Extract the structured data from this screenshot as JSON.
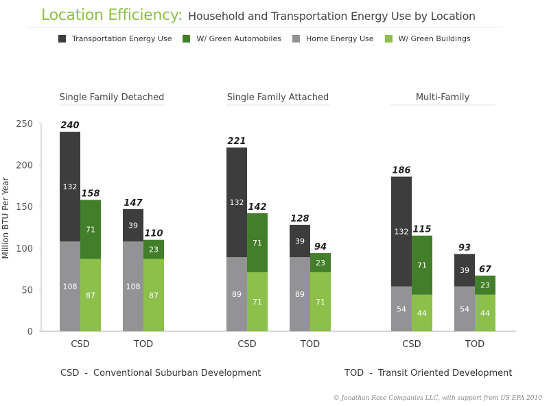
{
  "title": {
    "main": "Location Efficiency:",
    "sub": "Household and Transportation Energy Use by Location"
  },
  "legend": [
    {
      "label": "Transportation Energy Use",
      "color": "#3d3d3d"
    },
    {
      "label": "W/ Green Automobiles",
      "color": "#437f2a"
    },
    {
      "label": "Home Energy Use",
      "color": "#939396"
    },
    {
      "label": "W/ Green Buildings",
      "color": "#8cc04b"
    }
  ],
  "footnotes": {
    "csd_abbr": "CSD",
    "csd_dash": "-",
    "csd_text": "Conventional Suburban Development",
    "tod_abbr": "TOD",
    "tod_dash": "-",
    "tod_text": "Transit Oriented Development"
  },
  "credit": "© Jonathan Rose Companies LLC, with support from US EPA 2010",
  "chart_data": {
    "type": "bar",
    "stacked": true,
    "title": "Location Efficiency: Household and Transportation Energy Use by Location",
    "ylabel": "Million BTU Per Year",
    "xlabel": "",
    "ylim": [
      0,
      250
    ],
    "yticks": [
      0,
      50,
      100,
      150,
      200,
      250
    ],
    "grid": false,
    "legend_position": "top",
    "colors": {
      "transport": "#3d3d3d",
      "green_auto": "#437f2a",
      "home": "#939396",
      "green_bldg": "#8cc04b"
    },
    "groups": [
      {
        "name": "Single Family Detached",
        "categories": [
          {
            "label": "CSD",
            "standard": {
              "home": 108,
              "transport": 132,
              "total": 240
            },
            "green": {
              "home": 87,
              "transport": 71,
              "total": 158
            }
          },
          {
            "label": "TOD",
            "standard": {
              "home": 108,
              "transport": 39,
              "total": 147
            },
            "green": {
              "home": 87,
              "transport": 23,
              "total": 110
            }
          }
        ]
      },
      {
        "name": "Single Family Attached",
        "categories": [
          {
            "label": "CSD",
            "standard": {
              "home": 89,
              "transport": 132,
              "total": 221
            },
            "green": {
              "home": 71,
              "transport": 71,
              "total": 142
            }
          },
          {
            "label": "TOD",
            "standard": {
              "home": 89,
              "transport": 39,
              "total": 128
            },
            "green": {
              "home": 71,
              "transport": 23,
              "total": 94
            }
          }
        ]
      },
      {
        "name": "Multi-Family",
        "categories": [
          {
            "label": "CSD",
            "standard": {
              "home": 54,
              "transport": 132,
              "total": 186
            },
            "green": {
              "home": 44,
              "transport": 71,
              "total": 115
            }
          },
          {
            "label": "TOD",
            "standard": {
              "home": 54,
              "transport": 39,
              "total": 93
            },
            "green": {
              "home": 44,
              "transport": 23,
              "total": 67
            }
          }
        ]
      }
    ]
  }
}
